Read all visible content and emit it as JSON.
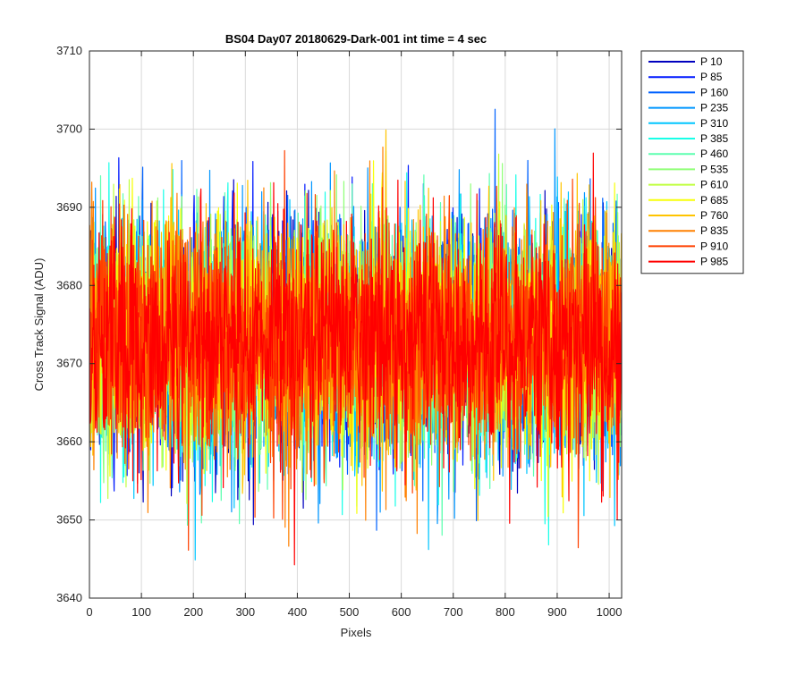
{
  "chart_data": {
    "type": "line",
    "title": "BS04 Day07 20180629-Dark-001 int time = 4 sec",
    "xlabel": "Pixels",
    "ylabel": "Cross Track Signal (ADU)",
    "xlim": [
      0,
      1024
    ],
    "ylim": [
      3640,
      3710
    ],
    "xticks": [
      0,
      100,
      200,
      300,
      400,
      500,
      600,
      700,
      800,
      900,
      1000
    ],
    "yticks": [
      3640,
      3650,
      3660,
      3670,
      3680,
      3690,
      3700,
      3710
    ],
    "grid": true,
    "legend_position": "outside-top-right",
    "mean_signal": 3673,
    "n_points": 1024,
    "series": [
      {
        "name": "P 10",
        "color": "#0000bf"
      },
      {
        "name": "P 85",
        "color": "#0019ff"
      },
      {
        "name": "P 160",
        "color": "#0062ff"
      },
      {
        "name": "P 235",
        "color": "#0096ff"
      },
      {
        "name": "P 310",
        "color": "#00c5ff"
      },
      {
        "name": "P 385",
        "color": "#18ffe8"
      },
      {
        "name": "P 460",
        "color": "#5dffb0"
      },
      {
        "name": "P 535",
        "color": "#90ff78"
      },
      {
        "name": "P 610",
        "color": "#c0ff40"
      },
      {
        "name": "P 685",
        "color": "#f7ff08"
      },
      {
        "name": "P 760",
        "color": "#ffc400"
      },
      {
        "name": "P 835",
        "color": "#ff8000"
      },
      {
        "name": "P 910",
        "color": "#ff4000"
      },
      {
        "name": "P 985",
        "color": "#ff0000"
      }
    ]
  }
}
